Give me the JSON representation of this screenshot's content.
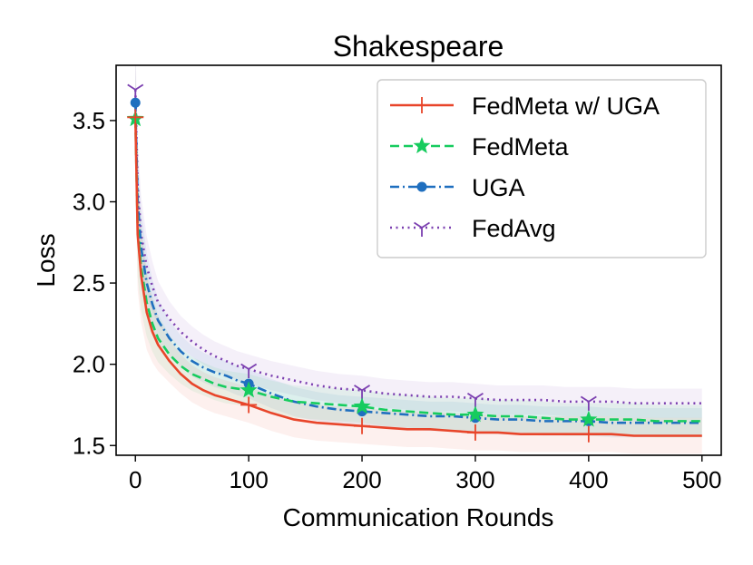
{
  "chart_data": {
    "type": "line",
    "title": "Shakespeare",
    "xlabel": "Communication Rounds",
    "ylabel": "Loss",
    "xlim": [
      -17,
      517
    ],
    "ylim": [
      1.44,
      3.84
    ],
    "xticks": [
      0,
      100,
      200,
      300,
      400,
      500
    ],
    "xtick_labels": [
      "0",
      "100",
      "200",
      "300",
      "400",
      "500"
    ],
    "yticks": [
      1.5,
      2.0,
      2.5,
      3.0,
      3.5
    ],
    "ytick_labels": [
      "1.5",
      "2.0",
      "2.5",
      "3.0",
      "3.5"
    ],
    "grid": false,
    "legend_position": "top-right",
    "series": [
      {
        "name": "FedAvg",
        "color": "#7b3fb0",
        "linestyle": "dotted",
        "marker": "tri-down",
        "marker_x": [
          0,
          100,
          200,
          300,
          400
        ],
        "band_width": 0.09,
        "x": [
          0,
          2,
          5,
          10,
          15,
          20,
          30,
          40,
          50,
          60,
          70,
          80,
          90,
          100,
          120,
          140,
          160,
          180,
          200,
          220,
          240,
          260,
          280,
          300,
          320,
          340,
          360,
          380,
          400,
          420,
          440,
          460,
          480,
          500
        ],
        "y": [
          3.69,
          3.1,
          2.8,
          2.6,
          2.48,
          2.38,
          2.28,
          2.2,
          2.14,
          2.09,
          2.05,
          2.02,
          1.99,
          1.97,
          1.93,
          1.9,
          1.87,
          1.85,
          1.84,
          1.82,
          1.81,
          1.8,
          1.8,
          1.79,
          1.78,
          1.78,
          1.78,
          1.77,
          1.77,
          1.77,
          1.76,
          1.76,
          1.76,
          1.76
        ]
      },
      {
        "name": "UGA",
        "color": "#1f6fbf",
        "linestyle": "dashdot",
        "marker": "circle",
        "marker_x": [
          0,
          100,
          200,
          300,
          400
        ],
        "band_width": 0.09,
        "x": [
          0,
          2,
          5,
          10,
          15,
          20,
          30,
          40,
          50,
          60,
          70,
          80,
          90,
          100,
          120,
          140,
          160,
          180,
          200,
          220,
          240,
          260,
          280,
          300,
          320,
          340,
          360,
          380,
          400,
          420,
          440,
          460,
          480,
          500
        ],
        "y": [
          3.61,
          3.0,
          2.72,
          2.5,
          2.37,
          2.27,
          2.16,
          2.08,
          2.02,
          1.98,
          1.95,
          1.93,
          1.9,
          1.88,
          1.82,
          1.77,
          1.74,
          1.72,
          1.71,
          1.7,
          1.69,
          1.68,
          1.68,
          1.67,
          1.66,
          1.66,
          1.65,
          1.65,
          1.65,
          1.64,
          1.64,
          1.64,
          1.64,
          1.64
        ]
      },
      {
        "name": "FedMeta",
        "color": "#16cc5e",
        "linestyle": "dashed",
        "marker": "star",
        "marker_x": [
          0,
          100,
          200,
          300,
          400
        ],
        "band_width": 0.1,
        "x": [
          0,
          2,
          5,
          10,
          15,
          20,
          30,
          40,
          50,
          60,
          70,
          80,
          90,
          100,
          120,
          140,
          160,
          180,
          200,
          220,
          240,
          260,
          280,
          300,
          320,
          340,
          360,
          380,
          400,
          420,
          440,
          460,
          480,
          500
        ],
        "y": [
          3.51,
          2.85,
          2.6,
          2.38,
          2.25,
          2.16,
          2.06,
          1.99,
          1.94,
          1.91,
          1.88,
          1.86,
          1.85,
          1.84,
          1.8,
          1.77,
          1.76,
          1.75,
          1.74,
          1.72,
          1.71,
          1.7,
          1.69,
          1.69,
          1.68,
          1.68,
          1.67,
          1.66,
          1.66,
          1.66,
          1.66,
          1.65,
          1.65,
          1.65
        ]
      },
      {
        "name": "FedMeta w/ UGA",
        "color": "#e8452a",
        "linestyle": "solid",
        "marker": "plus",
        "marker_x": [
          0,
          100,
          200,
          300,
          400
        ],
        "band_width": 0.11,
        "x": [
          0,
          2,
          5,
          10,
          15,
          20,
          30,
          40,
          50,
          60,
          70,
          80,
          90,
          100,
          120,
          140,
          160,
          180,
          200,
          220,
          240,
          260,
          280,
          300,
          320,
          340,
          360,
          380,
          400,
          420,
          440,
          460,
          480,
          500
        ],
        "y": [
          3.52,
          2.8,
          2.55,
          2.32,
          2.2,
          2.12,
          2.02,
          1.94,
          1.88,
          1.84,
          1.81,
          1.79,
          1.77,
          1.75,
          1.7,
          1.66,
          1.64,
          1.63,
          1.62,
          1.61,
          1.6,
          1.6,
          1.59,
          1.58,
          1.58,
          1.57,
          1.57,
          1.57,
          1.57,
          1.57,
          1.56,
          1.56,
          1.56,
          1.56
        ]
      }
    ],
    "legend_order": [
      "FedMeta w/ UGA",
      "FedMeta",
      "UGA",
      "FedAvg"
    ]
  }
}
